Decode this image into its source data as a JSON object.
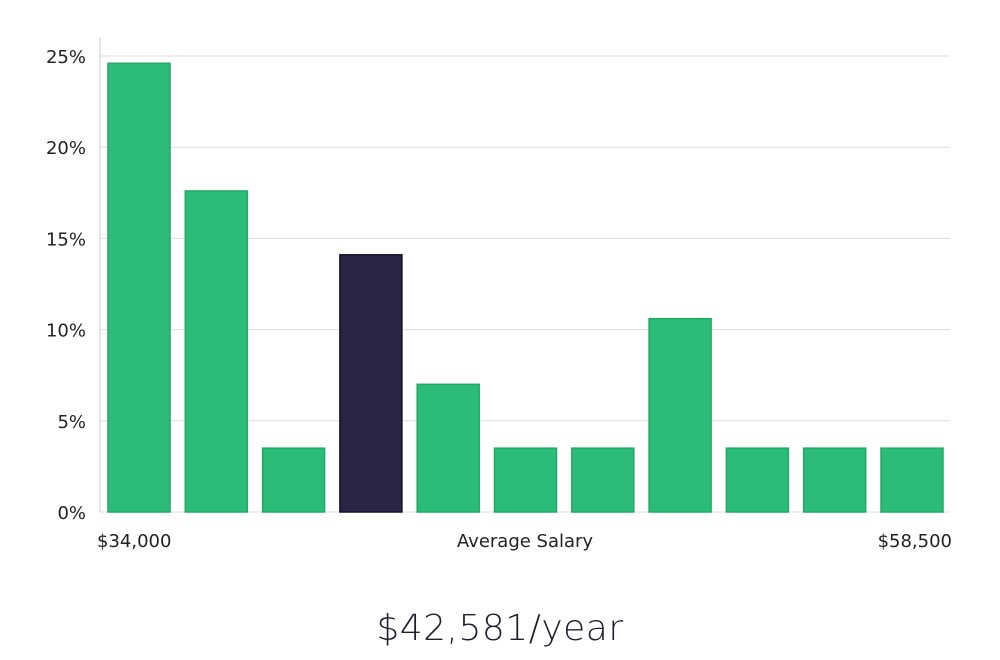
{
  "chart_data": {
    "type": "bar",
    "title": "",
    "xlabel": "Average Salary",
    "ylabel": "",
    "x_min_label": "$34,000",
    "x_max_label": "$58,500",
    "ylim": [
      0,
      26
    ],
    "yticks": [
      0,
      5,
      10,
      15,
      20,
      25
    ],
    "ytick_labels": [
      "0%",
      "5%",
      "10%",
      "15%",
      "20%",
      "25%"
    ],
    "values": [
      24.6,
      17.6,
      3.5,
      14.1,
      7.0,
      3.5,
      3.5,
      10.6,
      3.5,
      3.5,
      3.5
    ],
    "highlight_index": 3,
    "grid": true
  },
  "colors": {
    "bar": "#2bbd77",
    "bar_edge": "#22a866",
    "highlight": "#2a2545",
    "grid": "#dddddd",
    "axis": "#cccccc",
    "text": "#222222"
  },
  "salary": {
    "value": "$42,581/year"
  }
}
